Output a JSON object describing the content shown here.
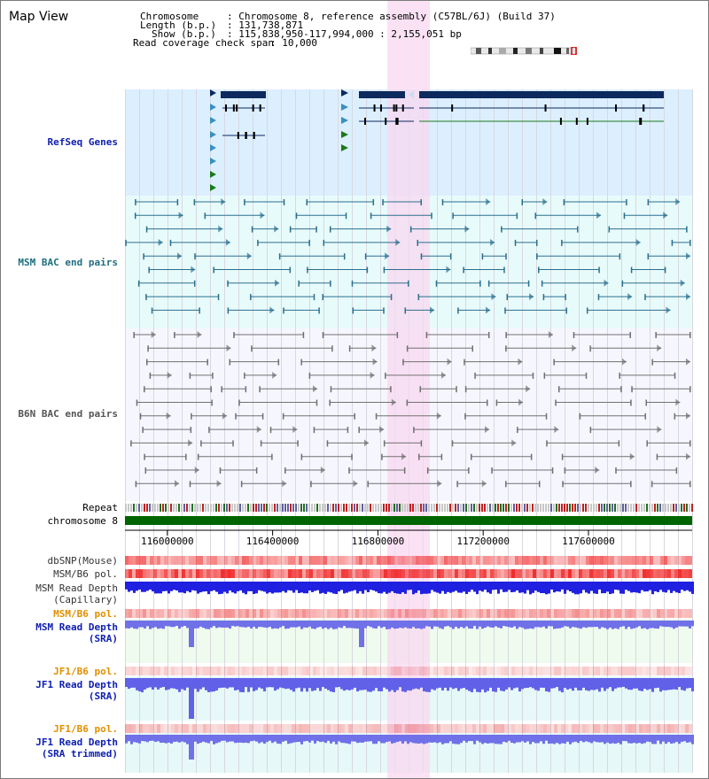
{
  "page": {
    "title": "Map View"
  },
  "header": {
    "chromosome_key": "Chromosome",
    "chromosome_value": ": Chromosome 8, reference assembly (C57BL/6J) (Build 37)",
    "length_key": "Length (b.p.)",
    "length_value": ": 131,738,871",
    "show_key": "Show (b.p.)",
    "show_value": ": 115,838,950-117,994,000 : 2,155,051 bp",
    "coverage_key": "Read coverage check span",
    "coverage_value": ": 10,000"
  },
  "tracks": {
    "refseq": "RefSeq Genes",
    "msm_bac": "MSM BAC end pairs",
    "b6n_bac": "B6N BAC end pairs",
    "repeat": "Repeat",
    "chromosome": "chromosome 8",
    "dbsnp": "dbSNP(Mouse)",
    "msm_b6_pol_1": "MSM/B6 pol.",
    "msm_read_depth_cap_1": "MSM Read Depth",
    "msm_read_depth_cap_2": "(Capillary)",
    "msm_b6_pol_2": "MSM/B6 pol.",
    "msm_read_depth_sra_1": "MSM Read Depth",
    "msm_read_depth_sra_2": "(SRA)",
    "jf1_b6_pol_1": "JF1/B6 pol.",
    "jf1_read_depth_sra_1": "JF1 Read Depth",
    "jf1_read_depth_sra_2": "(SRA)",
    "jf1_b6_pol_2": "JF1/B6 pol.",
    "jf1_read_depth_trim_1": "JF1 Read Depth",
    "jf1_read_depth_trim_2": "(SRA trimmed)"
  },
  "ruler": {
    "ticks": [
      "116000000",
      "116400000",
      "116800000",
      "117200000",
      "117600000"
    ],
    "tick_values": [
      116000000,
      116400000,
      116800000,
      117200000,
      117600000
    ]
  },
  "colors": {
    "refseq_bg": "#dcefff",
    "msm_bg": "#e8fbfb",
    "b6n_bg": "#f6f6ff",
    "highlight": "#f8d8f0",
    "msm_label": "#1f6f7f",
    "refseq_label": "#1020b0",
    "pol_label": "#e09000",
    "depth_label": "#1020b0",
    "gene_dark": "#0c2a5e",
    "gene_mid": "#3a8fc0",
    "gene_green": "#1a7a1a",
    "chromosome_bar": "#006400"
  }
}
